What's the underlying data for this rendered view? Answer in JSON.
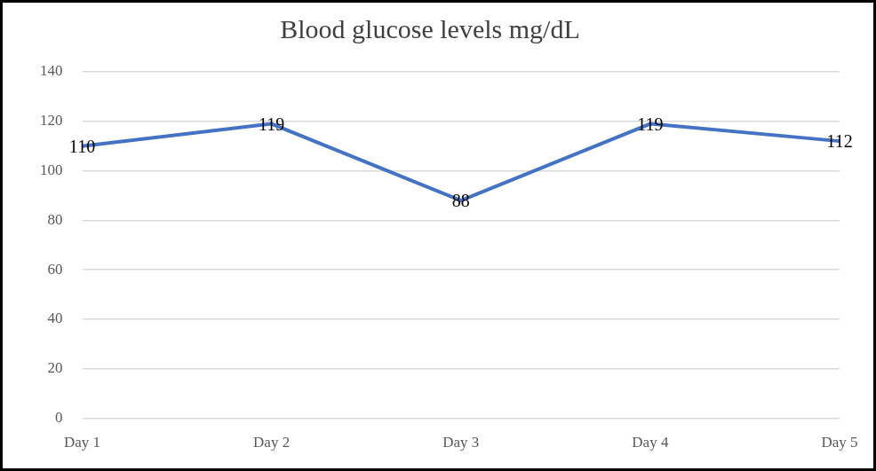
{
  "chart_data": {
    "type": "line",
    "title": "Blood glucose levels mg/dL",
    "categories": [
      "Day 1",
      "Day 2",
      "Day 3",
      "Day 4",
      "Day 5"
    ],
    "values": [
      110,
      119,
      88,
      119,
      112
    ],
    "color": "#4472c4",
    "ylim": [
      0,
      140
    ],
    "yticks": [
      0,
      20,
      40,
      60,
      80,
      100,
      120,
      140
    ],
    "grid": true,
    "data_labels": true
  }
}
